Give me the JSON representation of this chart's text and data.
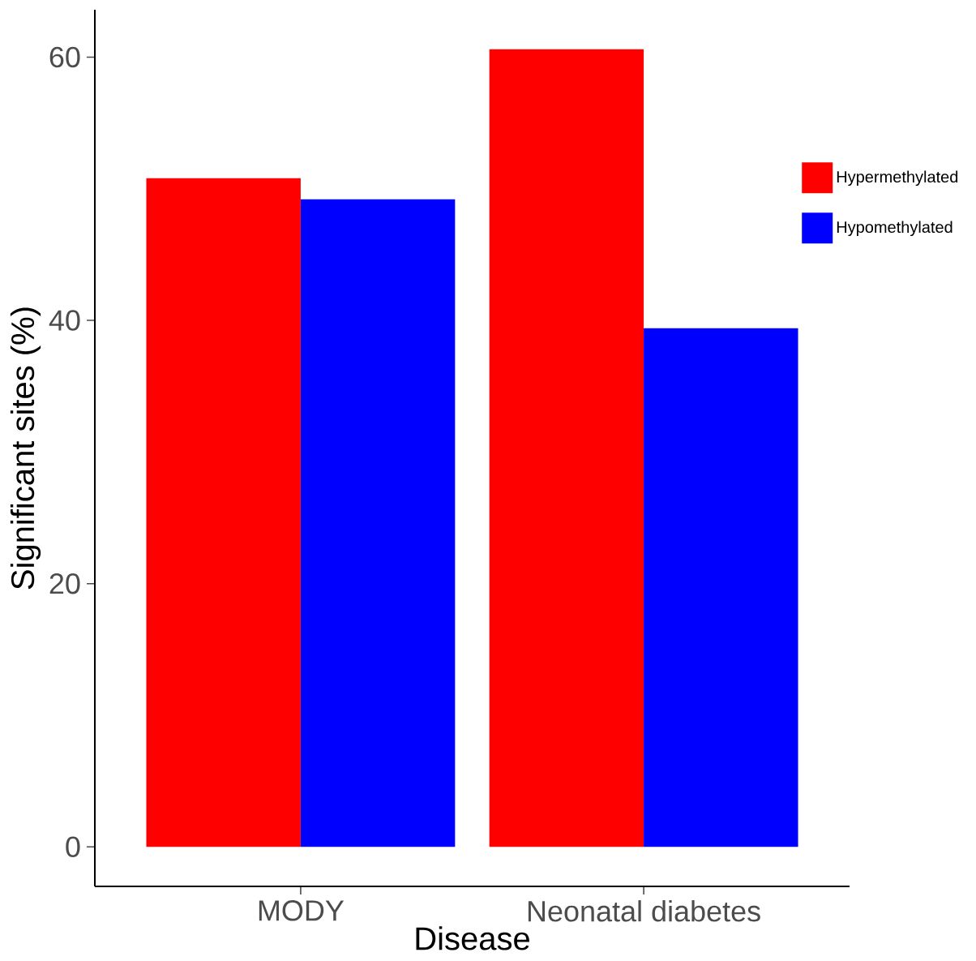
{
  "chart_data": {
    "type": "bar",
    "xlabel": "Disease",
    "ylabel": "Significant sites (%)",
    "categories": [
      "MODY",
      "Neonatal diabetes"
    ],
    "series": [
      {
        "name": "Hypermethylated",
        "color": "#ff0000",
        "values": [
          50.8,
          60.6
        ]
      },
      {
        "name": "Hypomethylated",
        "color": "#0000ff",
        "values": [
          49.2,
          39.4
        ]
      }
    ],
    "ylim": [
      -3,
      63.6
    ],
    "yticks": [
      0,
      20,
      40,
      60
    ],
    "grid": false,
    "legend": "right"
  }
}
